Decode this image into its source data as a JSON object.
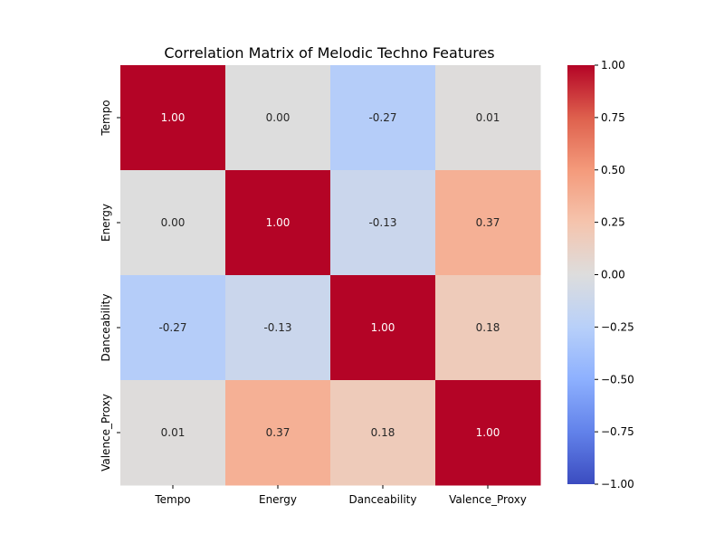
{
  "chart_data": {
    "type": "heatmap",
    "title": "Correlation Matrix of Melodic Techno Features",
    "xlabel": "",
    "ylabel": "",
    "x_categories": [
      "Tempo",
      "Energy",
      "Danceability",
      "Valence_Proxy"
    ],
    "y_categories": [
      "Tempo",
      "Energy",
      "Danceability",
      "Valence_Proxy"
    ],
    "matrix": [
      [
        1.0,
        0.0,
        -0.27,
        0.01
      ],
      [
        0.0,
        1.0,
        -0.13,
        0.37
      ],
      [
        -0.27,
        -0.13,
        1.0,
        0.18
      ],
      [
        0.01,
        0.37,
        0.18,
        1.0
      ]
    ],
    "cell_labels": [
      [
        "1.00",
        "0.00",
        "-0.27",
        "0.01"
      ],
      [
        "0.00",
        "1.00",
        "-0.13",
        "0.37"
      ],
      [
        "-0.27",
        "-0.13",
        "1.00",
        "0.18"
      ],
      [
        "0.01",
        "0.37",
        "0.18",
        "1.00"
      ]
    ],
    "colorscale": "coolwarm",
    "vmin": -1.0,
    "vmax": 1.0,
    "colorbar_ticks": [
      1.0,
      0.75,
      0.5,
      0.25,
      0.0,
      -0.25,
      -0.5,
      -0.75,
      -1.0
    ],
    "colorbar_tick_labels": [
      "1.00",
      "0.75",
      "0.50",
      "0.25",
      "0.00",
      "−0.25",
      "−0.50",
      "−0.75",
      "−1.00"
    ],
    "grid": false,
    "legend": "colorbar-right"
  }
}
